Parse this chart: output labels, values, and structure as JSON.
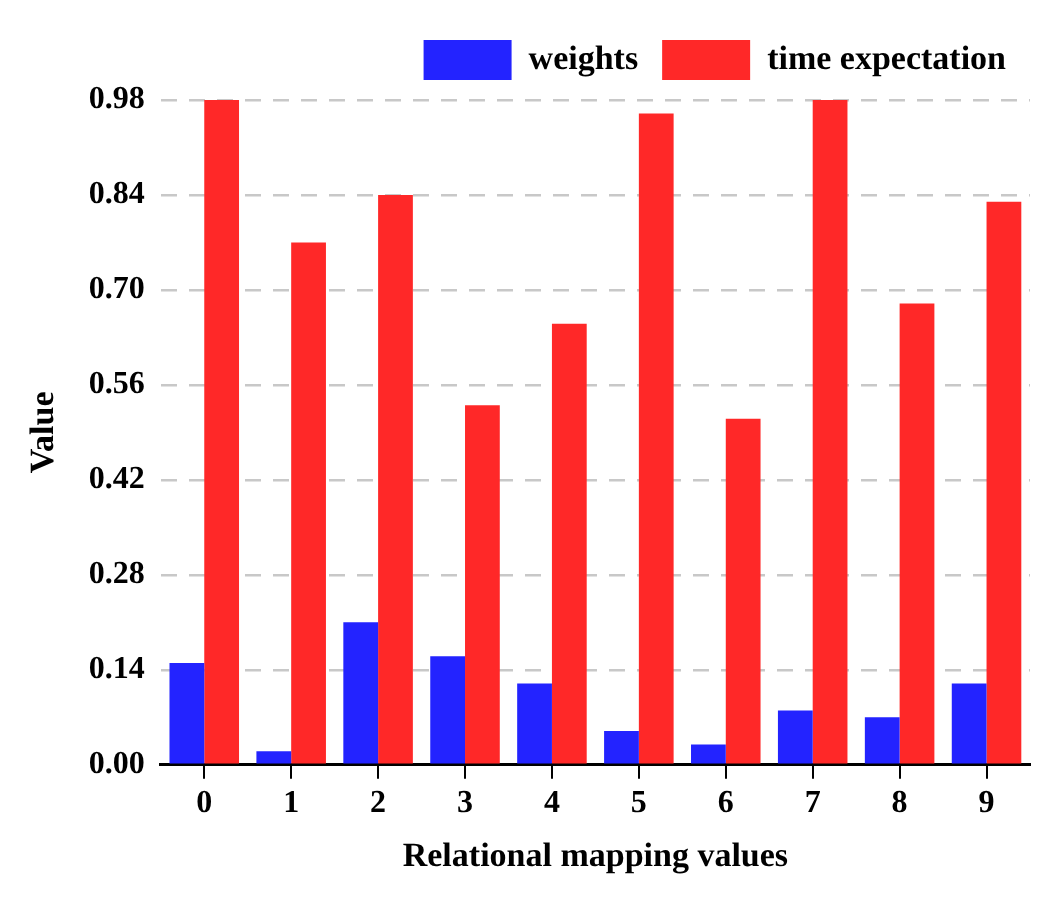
{
  "chart_data": {
    "type": "bar",
    "xlabel": "Relational mapping values",
    "ylabel": "Value",
    "categories": [
      "0",
      "1",
      "2",
      "3",
      "4",
      "5",
      "6",
      "7",
      "8",
      "9"
    ],
    "series": [
      {
        "name": "weights",
        "color": "#2323ff",
        "values": [
          0.15,
          0.02,
          0.21,
          0.16,
          0.12,
          0.05,
          0.03,
          0.08,
          0.07,
          0.12
        ]
      },
      {
        "name": "time expectation",
        "color": "#ff2828",
        "values": [
          0.98,
          0.77,
          0.84,
          0.53,
          0.65,
          0.96,
          0.51,
          0.98,
          0.68,
          0.83
        ]
      }
    ],
    "ylim": [
      0,
      0.98
    ],
    "yticks": [
      {
        "value": 0,
        "label": "0.00"
      },
      {
        "value": 0.14,
        "label": "0.14"
      },
      {
        "value": 0.28,
        "label": "0.28"
      },
      {
        "value": 0.42,
        "label": "0.42"
      },
      {
        "value": 0.56,
        "label": "0.56"
      },
      {
        "value": 0.7,
        "label": "0.70"
      },
      {
        "value": 0.84,
        "label": "0.84"
      },
      {
        "value": 0.98,
        "label": "0.98"
      }
    ],
    "grid": true,
    "legend": "top right"
  }
}
